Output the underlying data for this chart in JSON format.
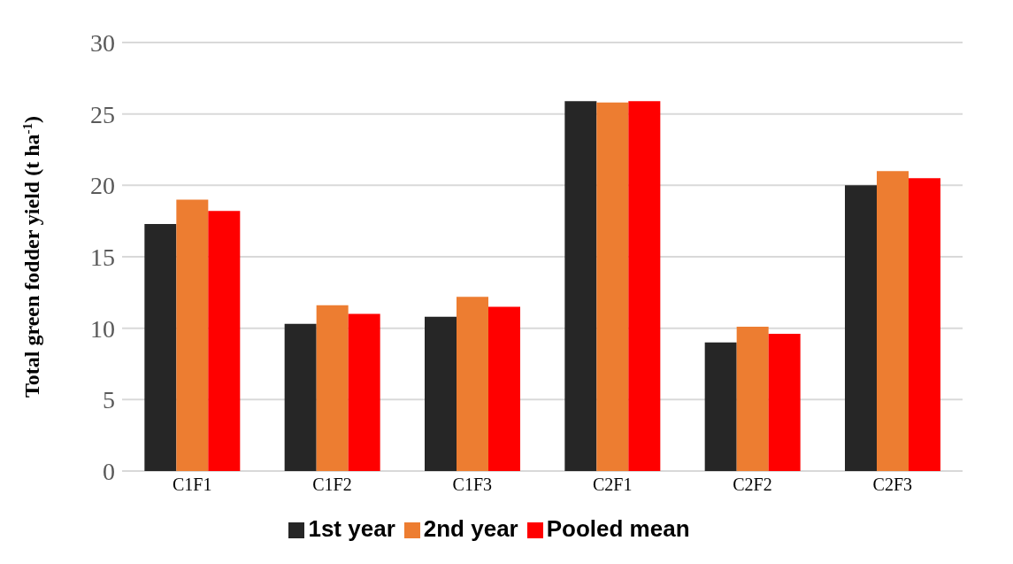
{
  "chart_data": {
    "type": "bar",
    "ylabel": "Total green fodder yield (t ha$^{-1}$)",
    "categories": [
      "C1F1",
      "C1F2",
      "C1F3",
      "C2F1",
      "C2F2",
      "C2F3"
    ],
    "series": [
      {
        "name": "1st year",
        "color": "#262626",
        "values": [
          17.3,
          10.3,
          10.8,
          25.9,
          9.0,
          20.0
        ]
      },
      {
        "name": "2nd year",
        "color": "#ed7d31",
        "values": [
          19.0,
          11.6,
          12.2,
          25.8,
          10.1,
          21.0
        ]
      },
      {
        "name": "Pooled mean",
        "color": "#ff0000",
        "values": [
          18.2,
          11.0,
          11.5,
          25.9,
          9.6,
          20.5
        ]
      }
    ],
    "ylim": [
      0,
      30
    ],
    "yticks": [
      0,
      5,
      10,
      15,
      20,
      25,
      30
    ],
    "grid": "y",
    "legend": "bottom"
  }
}
